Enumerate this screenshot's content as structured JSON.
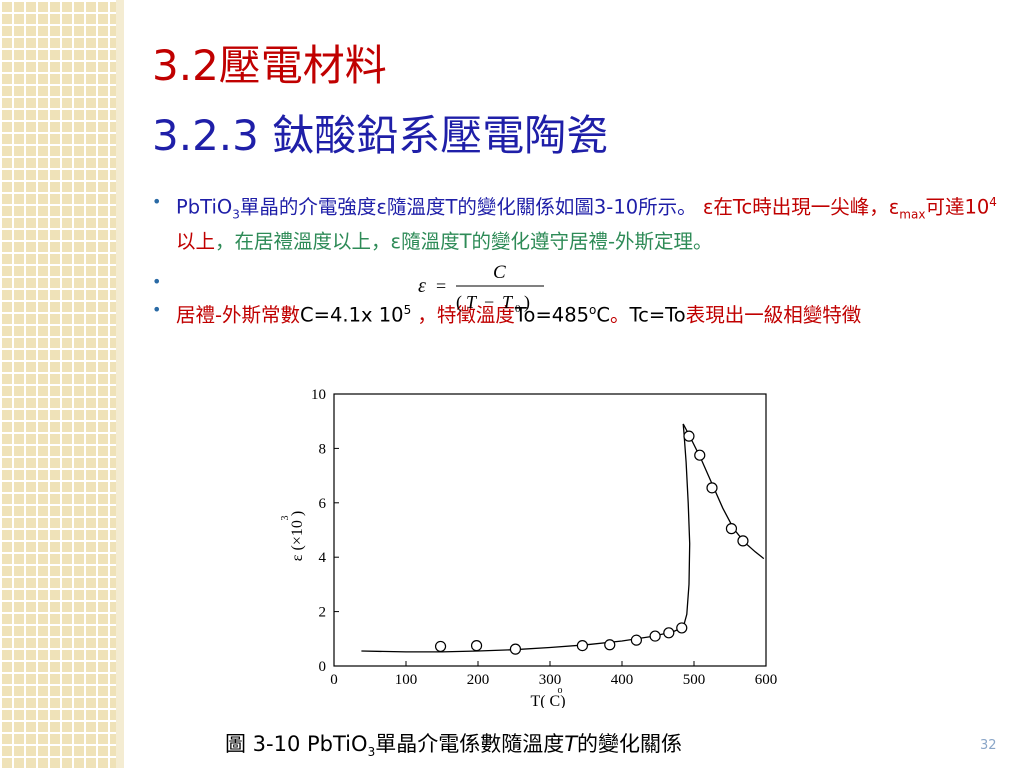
{
  "slide": {
    "title_main": "3.2壓電材料",
    "title_sub": "3.2.3 鈦酸鉛系壓電陶瓷",
    "page_number": "32"
  },
  "bullet1": {
    "t1": "PbTiO",
    "t1_sub": "3",
    "t2": "單晶的介電強度",
    "eps": "ε",
    "t3": "隨溫度",
    "t4": "T",
    "t5": "的變化關係如圖",
    "t6": "3-10",
    "t7": "所示。 ",
    "r1": "ε",
    "r2": "在",
    "r3": "Tc",
    "r4": "時出現一尖峰，",
    "r5": "ε",
    "r5_sub": "max",
    "r6": "可達",
    "r7": "10",
    "r7_sup": "4",
    "r8": "以上",
    "g1": "，在居禮溫度以上，",
    "g2": "ε",
    "g3": "隨溫度",
    "g4": "T",
    "g5": "的變化遵守居禮-外斯定理。"
  },
  "formula": {
    "lhs": "ε",
    "eq": "=",
    "numerator": "C",
    "den_open": "(",
    "den_T": "T",
    "den_minus": "−",
    "den_T0": "T",
    "den_T0_sub": "0",
    "den_close": ")"
  },
  "bullet3": {
    "p1": "居禮-外斯常數",
    "p2": "C=4.1x  10",
    "p2_sup": "5",
    "p3": " ，特徵溫度",
    "p4": "To=485",
    "p4_sup": "o",
    "p5": "C",
    "p6": "。",
    "p7": "Tc=To",
    "p8": "表現出一級相變特徵"
  },
  "chart_data": {
    "type": "scatter",
    "xlabel": "T(  C)",
    "xlabel_degree": "o",
    "ylabel": "ε (×10  )",
    "ylabel_exp": "3",
    "xlim": [
      0,
      600
    ],
    "ylim": [
      0,
      10
    ],
    "x_ticks": [
      0,
      100,
      200,
      300,
      400,
      500,
      600
    ],
    "y_ticks": [
      0,
      2,
      4,
      6,
      8,
      10
    ],
    "grid": false,
    "points": [
      {
        "x": 148,
        "y": 0.72
      },
      {
        "x": 198,
        "y": 0.75
      },
      {
        "x": 252,
        "y": 0.62
      },
      {
        "x": 345,
        "y": 0.75
      },
      {
        "x": 383,
        "y": 0.78
      },
      {
        "x": 420,
        "y": 0.95
      },
      {
        "x": 446,
        "y": 1.1
      },
      {
        "x": 465,
        "y": 1.22
      },
      {
        "x": 483,
        "y": 1.4
      },
      {
        "x": 493,
        "y": 8.45
      },
      {
        "x": 508,
        "y": 7.75
      },
      {
        "x": 525,
        "y": 6.55
      },
      {
        "x": 552,
        "y": 5.05
      },
      {
        "x": 568,
        "y": 4.6
      }
    ],
    "curve_low": [
      {
        "x": 38,
        "y": 0.55
      },
      {
        "x": 100,
        "y": 0.52
      },
      {
        "x": 150,
        "y": 0.52
      },
      {
        "x": 200,
        "y": 0.55
      },
      {
        "x": 250,
        "y": 0.6
      },
      {
        "x": 300,
        "y": 0.68
      },
      {
        "x": 350,
        "y": 0.78
      },
      {
        "x": 400,
        "y": 0.92
      },
      {
        "x": 440,
        "y": 1.08
      },
      {
        "x": 470,
        "y": 1.25
      },
      {
        "x": 485,
        "y": 1.42
      },
      {
        "x": 490,
        "y": 1.9
      },
      {
        "x": 493,
        "y": 3.0
      },
      {
        "x": 494,
        "y": 4.5
      },
      {
        "x": 492,
        "y": 6.0
      },
      {
        "x": 489,
        "y": 7.5
      },
      {
        "x": 486,
        "y": 8.6
      },
      {
        "x": 485,
        "y": 8.9
      }
    ],
    "curve_high": [
      {
        "x": 485,
        "y": 8.9
      },
      {
        "x": 495,
        "y": 8.4
      },
      {
        "x": 510,
        "y": 7.6
      },
      {
        "x": 525,
        "y": 6.7
      },
      {
        "x": 540,
        "y": 5.8
      },
      {
        "x": 555,
        "y": 5.05
      },
      {
        "x": 570,
        "y": 4.55
      },
      {
        "x": 585,
        "y": 4.2
      },
      {
        "x": 597,
        "y": 3.95
      }
    ]
  },
  "caption": {
    "c1": "圖 3-10    PbTiO",
    "c1_sub": "3",
    "c2": "單晶介電係數隨溫度",
    "c3": "T",
    "c4": "的變化關係"
  }
}
